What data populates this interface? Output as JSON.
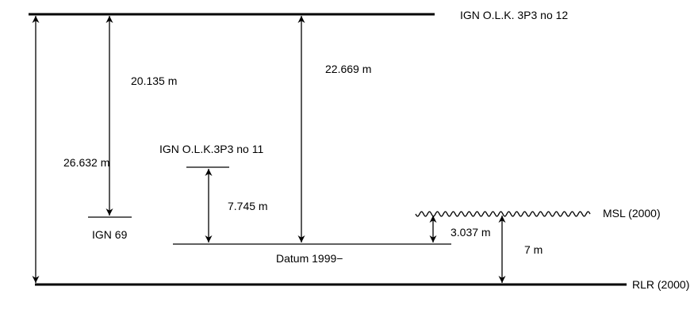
{
  "levels": {
    "top": "IGN O.L.K. 3P3 no 12",
    "bm11": "IGN O.L.K.3P3 no 11",
    "ign69": "IGN 69",
    "datum": "Datum 1999−",
    "msl": "MSL (2000)",
    "rlr": "RLR (2000)"
  },
  "measurements": {
    "top_to_rlr": "26.632 m",
    "top_to_ign69": "20.135 m",
    "top_to_datum": "22.669 m",
    "bm11_to_datum": "7.745 m",
    "msl_to_datum": "3.037 m",
    "msl_to_rlr": "7 m"
  }
}
